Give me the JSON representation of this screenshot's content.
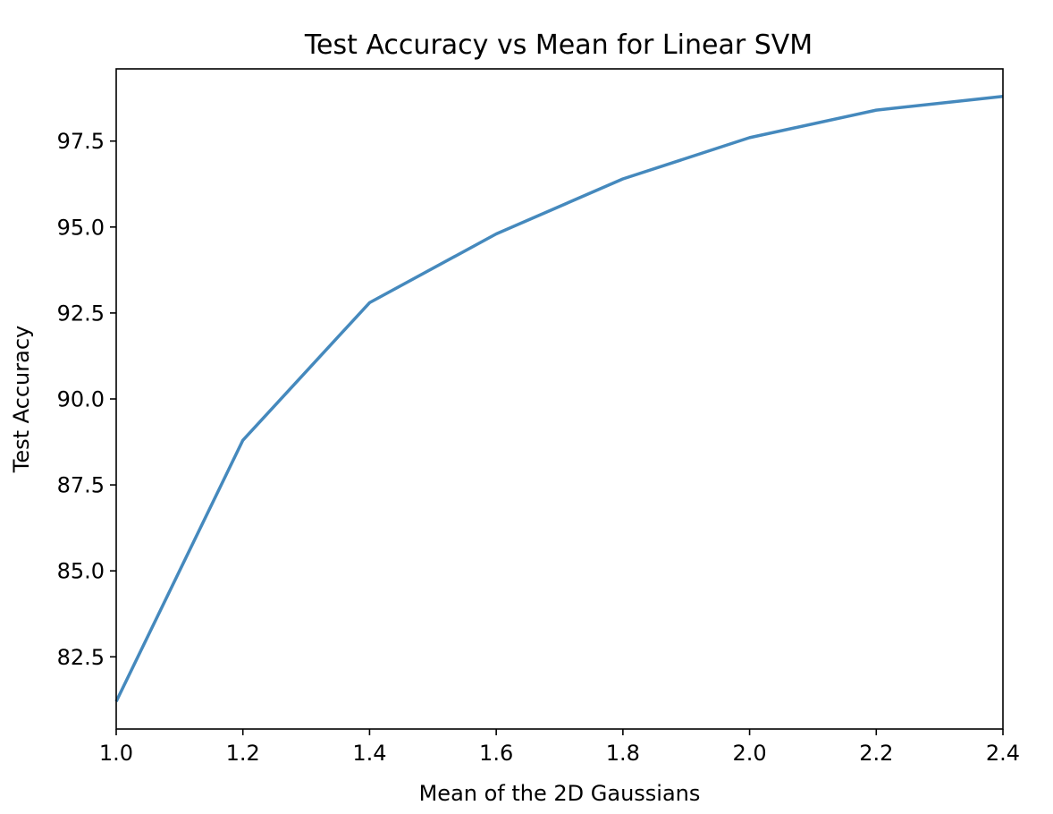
{
  "chart_data": {
    "type": "line",
    "title": "Test Accuracy vs Mean for Linear SVM",
    "xlabel": "Mean of the 2D Gaussians",
    "ylabel": "Test Accuracy",
    "xlim": [
      1.0,
      2.4
    ],
    "ylim": [
      80.4,
      99.6
    ],
    "grid": false,
    "legend": "none",
    "x_ticks": [
      "1.0",
      "1.2",
      "1.4",
      "1.6",
      "1.8",
      "2.0",
      "2.2",
      "2.4"
    ],
    "y_ticks": [
      "82.5",
      "85.0",
      "87.5",
      "90.0",
      "92.5",
      "95.0",
      "97.5"
    ],
    "x": [
      1.0,
      1.2,
      1.4,
      1.6,
      1.8,
      2.0,
      2.2,
      2.4
    ],
    "series": [
      {
        "values": [
          81.2,
          88.8,
          92.8,
          94.8,
          96.4,
          97.6,
          98.4,
          98.8
        ],
        "color": "#4589bd"
      }
    ]
  }
}
